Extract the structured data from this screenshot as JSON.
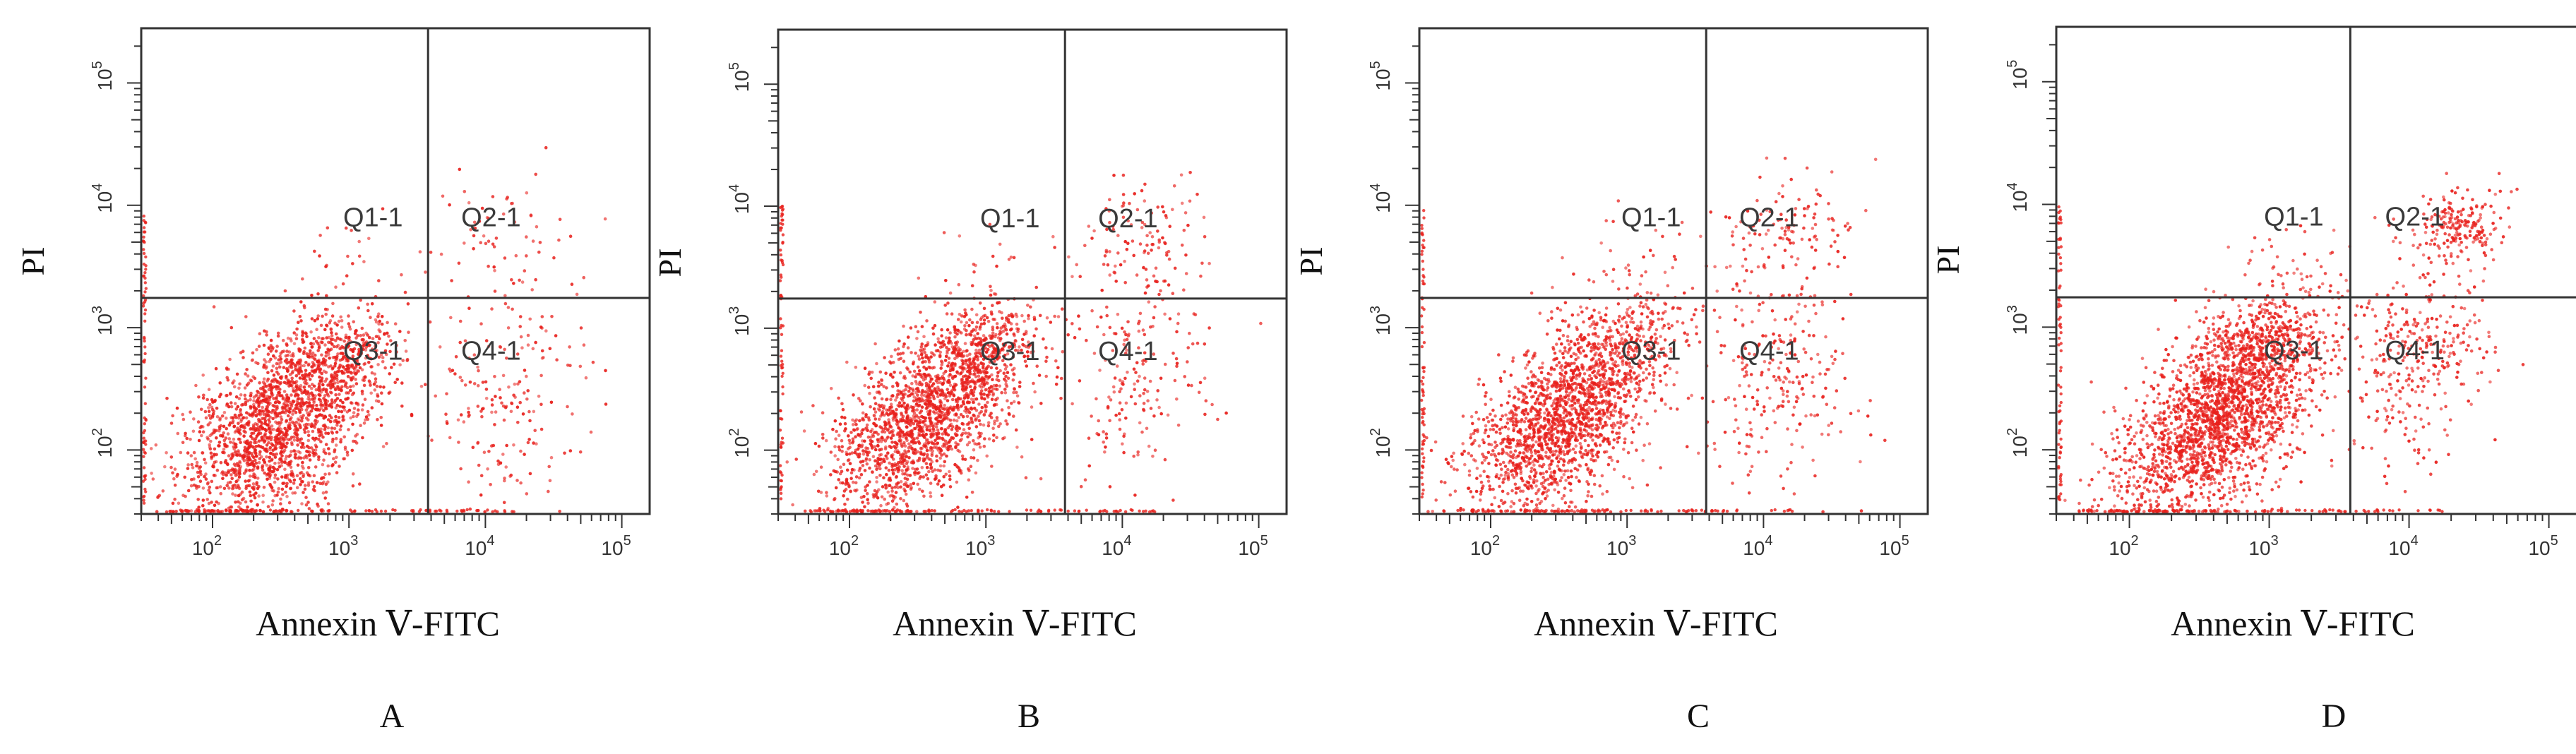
{
  "colors": {
    "events": "#e8201c",
    "frame": "#333333",
    "gate": "#333333",
    "text": "#111111"
  },
  "chart_data": [
    {
      "type": "scatter",
      "panel_label": "A",
      "xlabel": "Annexin Ⅴ-FITC",
      "ylabel": "PI",
      "xscale": "log",
      "yscale": "log",
      "xlim": [
        30,
        160000
      ],
      "ylim": [
        30,
        280000
      ],
      "x_ticks": [
        {
          "value": 100,
          "base": "10",
          "exp": "2"
        },
        {
          "value": 1000,
          "base": "10",
          "exp": "3"
        },
        {
          "value": 10000,
          "base": "10",
          "exp": "4"
        },
        {
          "value": 100000,
          "base": "10",
          "exp": "5"
        }
      ],
      "y_ticks": [
        {
          "value": 100,
          "base": "10",
          "exp": "2"
        },
        {
          "value": 1000,
          "base": "10",
          "exp": "3"
        },
        {
          "value": 10000,
          "base": "10",
          "exp": "4"
        },
        {
          "value": 100000,
          "base": "10",
          "exp": "5"
        }
      ],
      "gate": {
        "x": 3800,
        "y": 1750
      },
      "quadrants": [
        {
          "label": "Q1-1",
          "x": 1500,
          "y": 8000
        },
        {
          "label": "Q2-1",
          "x": 11000,
          "y": 8000
        },
        {
          "label": "Q3-1",
          "x": 1500,
          "y": 650
        },
        {
          "label": "Q4-1",
          "x": 11000,
          "y": 650
        }
      ],
      "populations": [
        {
          "x": 300,
          "y": 150,
          "sx": 0.34,
          "sy": 0.38,
          "rho": 0.45,
          "n": 1700
        },
        {
          "x": 700,
          "y": 500,
          "sx": 0.25,
          "sy": 0.22,
          "rho": 0.3,
          "n": 420
        },
        {
          "x": 14000,
          "y": 320,
          "sx": 0.28,
          "sy": 0.48,
          "rho": 0.1,
          "n": 200
        },
        {
          "x": 14000,
          "y": 6000,
          "sx": 0.28,
          "sy": 0.28,
          "rho": 0.2,
          "n": 55
        },
        {
          "x": 900,
          "y": 4000,
          "sx": 0.3,
          "sy": 0.22,
          "rho": 0.1,
          "n": 25
        }
      ]
    },
    {
      "type": "scatter",
      "panel_label": "B",
      "xlabel": "Annexin Ⅴ-FITC",
      "ylabel": "PI",
      "xscale": "log",
      "yscale": "log",
      "xlim": [
        30,
        160000
      ],
      "ylim": [
        30,
        280000
      ],
      "x_ticks": [
        {
          "value": 100,
          "base": "10",
          "exp": "2"
        },
        {
          "value": 1000,
          "base": "10",
          "exp": "3"
        },
        {
          "value": 10000,
          "base": "10",
          "exp": "4"
        },
        {
          "value": 100000,
          "base": "10",
          "exp": "5"
        }
      ],
      "y_ticks": [
        {
          "value": 100,
          "base": "10",
          "exp": "2"
        },
        {
          "value": 1000,
          "base": "10",
          "exp": "3"
        },
        {
          "value": 10000,
          "base": "10",
          "exp": "4"
        },
        {
          "value": 100000,
          "base": "10",
          "exp": "5"
        }
      ],
      "gate": {
        "x": 3800,
        "y": 1750
      },
      "quadrants": [
        {
          "label": "Q1-1",
          "x": 1500,
          "y": 8000
        },
        {
          "label": "Q2-1",
          "x": 11000,
          "y": 8000
        },
        {
          "label": "Q3-1",
          "x": 1500,
          "y": 650
        },
        {
          "label": "Q4-1",
          "x": 11000,
          "y": 650
        }
      ],
      "populations": [
        {
          "x": 350,
          "y": 170,
          "sx": 0.33,
          "sy": 0.36,
          "rho": 0.5,
          "n": 1600
        },
        {
          "x": 800,
          "y": 600,
          "sx": 0.25,
          "sy": 0.22,
          "rho": 0.3,
          "n": 400
        },
        {
          "x": 12000,
          "y": 400,
          "sx": 0.28,
          "sy": 0.45,
          "rho": 0.1,
          "n": 190
        },
        {
          "x": 14000,
          "y": 5500,
          "sx": 0.26,
          "sy": 0.25,
          "rho": 0.2,
          "n": 110
        },
        {
          "x": 1000,
          "y": 3000,
          "sx": 0.3,
          "sy": 0.2,
          "rho": 0.1,
          "n": 25
        }
      ]
    },
    {
      "type": "scatter",
      "panel_label": "C",
      "xlabel": "Annexin Ⅴ-FITC",
      "ylabel": "PI",
      "xscale": "log",
      "yscale": "log",
      "xlim": [
        30,
        160000
      ],
      "ylim": [
        30,
        280000
      ],
      "x_ticks": [
        {
          "value": 100,
          "base": "10",
          "exp": "2"
        },
        {
          "value": 1000,
          "base": "10",
          "exp": "3"
        },
        {
          "value": 10000,
          "base": "10",
          "exp": "4"
        },
        {
          "value": 100000,
          "base": "10",
          "exp": "5"
        }
      ],
      "y_ticks": [
        {
          "value": 100,
          "base": "10",
          "exp": "2"
        },
        {
          "value": 1000,
          "base": "10",
          "exp": "3"
        },
        {
          "value": 10000,
          "base": "10",
          "exp": "4"
        },
        {
          "value": 100000,
          "base": "10",
          "exp": "5"
        }
      ],
      "gate": {
        "x": 3800,
        "y": 1750
      },
      "quadrants": [
        {
          "label": "Q1-1",
          "x": 1500,
          "y": 8000
        },
        {
          "label": "Q2-1",
          "x": 11000,
          "y": 8000
        },
        {
          "label": "Q3-1",
          "x": 1500,
          "y": 650
        },
        {
          "label": "Q4-1",
          "x": 11000,
          "y": 650
        }
      ],
      "populations": [
        {
          "x": 320,
          "y": 160,
          "sx": 0.33,
          "sy": 0.36,
          "rho": 0.45,
          "n": 1550
        },
        {
          "x": 800,
          "y": 650,
          "sx": 0.25,
          "sy": 0.22,
          "rho": 0.3,
          "n": 380
        },
        {
          "x": 13000,
          "y": 420,
          "sx": 0.3,
          "sy": 0.45,
          "rho": 0.1,
          "n": 250
        },
        {
          "x": 15000,
          "y": 6000,
          "sx": 0.26,
          "sy": 0.25,
          "rho": 0.2,
          "n": 120
        },
        {
          "x": 1200,
          "y": 3500,
          "sx": 0.3,
          "sy": 0.22,
          "rho": 0.1,
          "n": 40
        }
      ]
    },
    {
      "type": "scatter",
      "panel_label": "D",
      "xlabel": "Annexin Ⅴ-FITC",
      "ylabel": "PI",
      "xscale": "log",
      "yscale": "log",
      "xlim": [
        30,
        160000
      ],
      "ylim": [
        30,
        280000
      ],
      "x_ticks": [
        {
          "value": 100,
          "base": "10",
          "exp": "2"
        },
        {
          "value": 1000,
          "base": "10",
          "exp": "3"
        },
        {
          "value": 10000,
          "base": "10",
          "exp": "4"
        },
        {
          "value": 100000,
          "base": "10",
          "exp": "5"
        }
      ],
      "y_ticks": [
        {
          "value": 100,
          "base": "10",
          "exp": "2"
        },
        {
          "value": 1000,
          "base": "10",
          "exp": "3"
        },
        {
          "value": 10000,
          "base": "10",
          "exp": "4"
        },
        {
          "value": 100000,
          "base": "10",
          "exp": "5"
        }
      ],
      "gate": {
        "x": 3800,
        "y": 1750
      },
      "quadrants": [
        {
          "label": "Q1-1",
          "x": 1500,
          "y": 8000
        },
        {
          "label": "Q2-1",
          "x": 11000,
          "y": 8000
        },
        {
          "label": "Q3-1",
          "x": 1500,
          "y": 650
        },
        {
          "label": "Q4-1",
          "x": 11000,
          "y": 650
        }
      ],
      "populations": [
        {
          "x": 420,
          "y": 170,
          "sx": 0.34,
          "sy": 0.38,
          "rho": 0.5,
          "n": 1900
        },
        {
          "x": 900,
          "y": 700,
          "sx": 0.25,
          "sy": 0.22,
          "rho": 0.3,
          "n": 500
        },
        {
          "x": 12000,
          "y": 550,
          "sx": 0.26,
          "sy": 0.4,
          "rho": 0.2,
          "n": 330
        },
        {
          "x": 22000,
          "y": 6500,
          "sx": 0.18,
          "sy": 0.16,
          "rho": 0.2,
          "n": 200
        },
        {
          "x": 1200,
          "y": 3500,
          "sx": 0.3,
          "sy": 0.22,
          "rho": 0.1,
          "n": 35
        }
      ]
    }
  ]
}
